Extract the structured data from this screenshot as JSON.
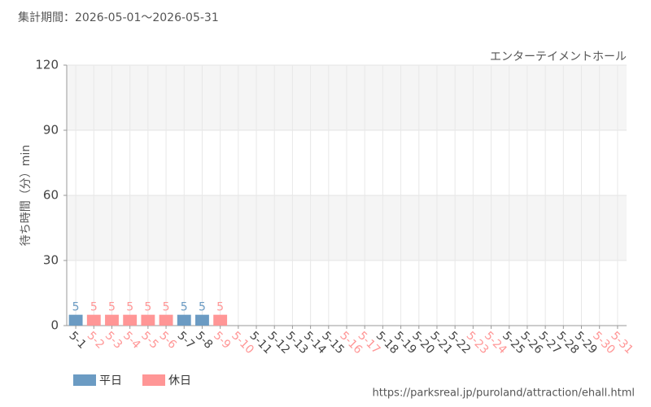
{
  "chart_data": {
    "type": "bar",
    "subtitle": "集計期間：2026-05-01～2026-05-31",
    "title": "エンターテイメントホール",
    "y_label": "待ち時間（分）min",
    "source": "https://parksreal.jp/puroland/attraction/ehall.html",
    "categories": [
      "5-1",
      "5-2",
      "5-3",
      "5-4",
      "5-5",
      "5-6",
      "5-7",
      "5-8",
      "5-9",
      "5-10",
      "5-11",
      "5-12",
      "5-13",
      "5-14",
      "5-15",
      "5-16",
      "5-17",
      "5-18",
      "5-19",
      "5-20",
      "5-21",
      "5-22",
      "5-23",
      "5-24",
      "5-25",
      "5-26",
      "5-27",
      "5-28",
      "5-29",
      "5-30",
      "5-31"
    ],
    "category_series": [
      0,
      1,
      1,
      1,
      1,
      1,
      0,
      0,
      1,
      1,
      0,
      0,
      0,
      0,
      0,
      1,
      1,
      0,
      0,
      0,
      0,
      0,
      1,
      1,
      0,
      0,
      0,
      0,
      0,
      1,
      1
    ],
    "series": [
      {
        "name": "平日",
        "color": "#6b9bc3",
        "values": [
          5,
          null,
          null,
          null,
          null,
          null,
          5,
          5,
          null,
          null,
          null,
          null,
          null,
          null,
          null,
          null,
          null,
          null,
          null,
          null,
          null,
          null,
          null,
          null,
          null,
          null,
          null,
          null,
          null,
          null,
          null
        ]
      },
      {
        "name": "休日",
        "color": "#ff9696",
        "values": [
          null,
          5,
          5,
          5,
          5,
          5,
          null,
          null,
          5,
          null,
          null,
          null,
          null,
          null,
          null,
          null,
          null,
          null,
          null,
          null,
          null,
          null,
          null,
          null,
          null,
          null,
          null,
          null,
          null,
          null,
          null
        ]
      }
    ],
    "ylim": [
      0,
      120
    ],
    "yticks": [
      0,
      30,
      60,
      90,
      120
    ],
    "grid": true
  }
}
